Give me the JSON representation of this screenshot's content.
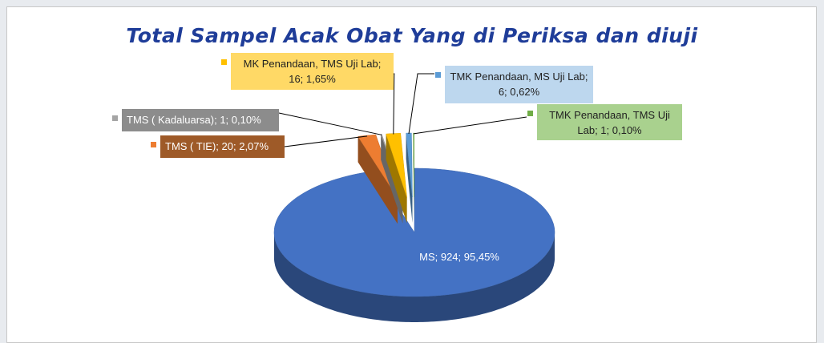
{
  "chart_data": {
    "type": "pie",
    "title": "Total Sampel Acak Obat Yang di Periksa dan diuji",
    "categories": [
      "MS",
      "TMS ( TIE)",
      "TMS ( Kadaluarsa)",
      "MK Penandaan, TMS Uji Lab",
      "TMK Penandaan, MS Uji Lab",
      "TMK Penandaan, TMS Uji Lab"
    ],
    "values": [
      924,
      20,
      1,
      16,
      6,
      1
    ],
    "value_labels": [
      "MS; 924; 95,45%",
      "TMS ( TIE); 20; 2,07%",
      "TMS ( Kadaluarsa); 1; 0,10%",
      "MK Penandaan, TMS Uji Lab; 16; 1,65%",
      "TMK Penandaan, MS Uji Lab; 6; 0,62%",
      "TMK Penandaan, TMS Uji Lab; 1; 0,10%"
    ],
    "colors": [
      "#4472c4",
      "#ed7d31",
      "#a5a5a5",
      "#ffc000",
      "#5b9bd5",
      "#70ad47"
    ],
    "label_colors": [
      "#4472c4",
      "#9e5a28",
      "#8c8c8c",
      "#ffd966",
      "#bdd7ee",
      "#a9d18e"
    ]
  }
}
